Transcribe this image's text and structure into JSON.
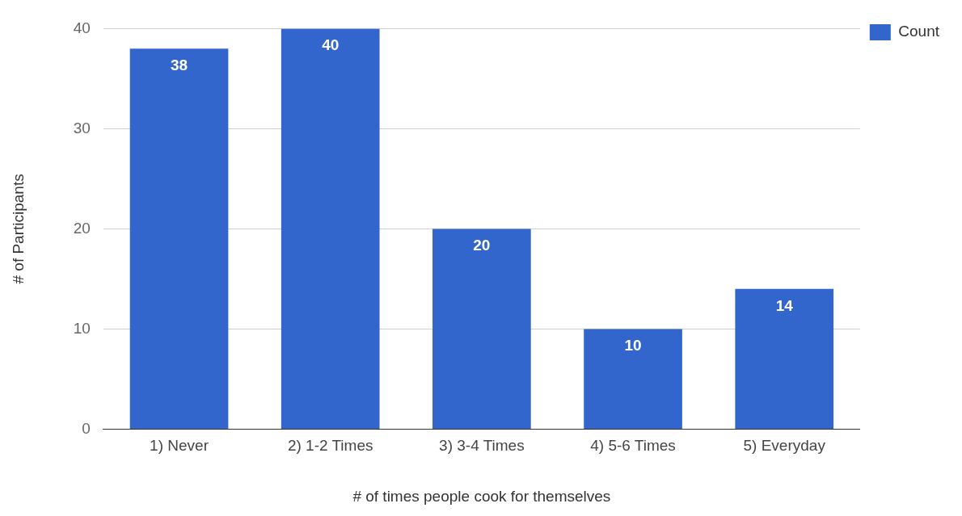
{
  "chart_data": {
    "type": "bar",
    "xlabel": "# of times people cook for themselves",
    "ylabel": "# of Participants",
    "categories": [
      "1) Never",
      "2) 1-2 Times",
      "3) 3-4 Times",
      "4) 5-6 Times",
      "5) Everyday"
    ],
    "series": [
      {
        "name": "Count",
        "color": "#3366cc",
        "values": [
          38,
          40,
          20,
          10,
          14
        ]
      }
    ],
    "ylim": [
      0,
      40
    ],
    "yticks": [
      0,
      10,
      20,
      30,
      40
    ],
    "grid": "y",
    "legend": "top right",
    "data_labels": true
  }
}
